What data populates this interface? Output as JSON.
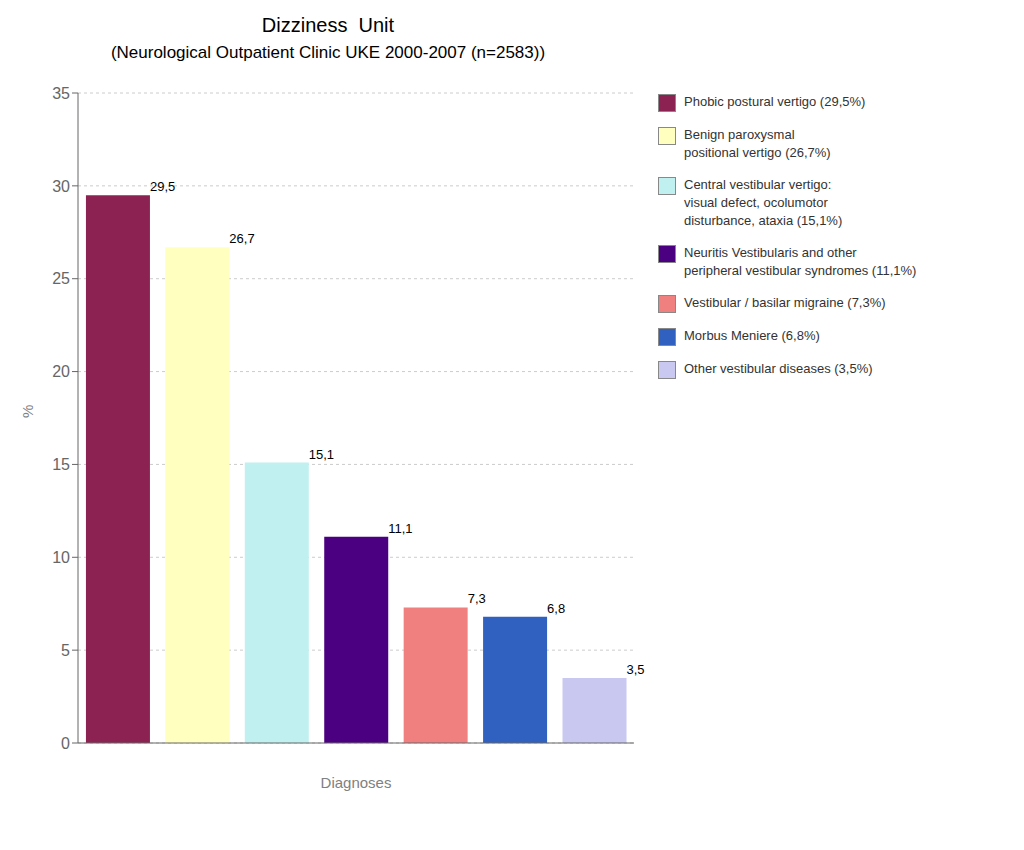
{
  "chart_data": {
    "type": "bar",
    "title": "Dizziness  Unit",
    "subtitle": "(Neurological Outpatient Clinic UKE 2000-2007 (n=2583))",
    "x_label": "Diagnoses",
    "y_label": "%",
    "categories": [
      null,
      null,
      null,
      null,
      null,
      null,
      null
    ],
    "series": [
      {
        "name": "Phobic postural vertigo (29,5%)",
        "color": "#8B2252",
        "values": [
          29.5,
          null,
          null,
          null,
          null,
          null,
          null
        ],
        "value_labels": [
          "29,5",
          null,
          null,
          null,
          null,
          null,
          null
        ]
      },
      {
        "name": "Benign paroxysmal\npositional vertigo (26,7%)",
        "color": "#FFFFC0",
        "values": [
          null,
          26.7,
          null,
          null,
          null,
          null,
          null
        ],
        "value_labels": [
          null,
          "26,7",
          null,
          null,
          null,
          null,
          null
        ]
      },
      {
        "name": "Central vestibular vertigo:\nvisual defect, ocolumotor\ndisturbance, ataxia (15,1%)",
        "color": "#C0F0F0",
        "values": [
          null,
          null,
          15.1,
          null,
          null,
          null,
          null
        ],
        "value_labels": [
          null,
          null,
          "15,1",
          null,
          null,
          null,
          null
        ]
      },
      {
        "name": "Neuritis Vestibularis and other\nperipheral vestibular syndromes (11,1%)",
        "color": "#4B0082",
        "values": [
          null,
          null,
          null,
          11.1,
          null,
          null,
          null
        ],
        "value_labels": [
          null,
          null,
          null,
          "11,1",
          null,
          null,
          null
        ]
      },
      {
        "name": "Vestibular / basilar migraine (7,3%)",
        "color": "#F08080",
        "values": [
          null,
          null,
          null,
          null,
          7.3,
          null,
          null
        ],
        "value_labels": [
          null,
          null,
          null,
          null,
          "7,3",
          null,
          null
        ]
      },
      {
        "name": "Morbus Meniere (6,8%)",
        "color": "#3060C0",
        "values": [
          null,
          null,
          null,
          null,
          null,
          6.8,
          null
        ],
        "value_labels": [
          null,
          null,
          null,
          null,
          null,
          "6,8",
          null
        ]
      },
      {
        "name": "Other vestibular diseases (3,5%)",
        "color": "#C8C8F0",
        "values": [
          null,
          null,
          null,
          null,
          null,
          null,
          3.5
        ],
        "value_labels": [
          null,
          null,
          null,
          null,
          null,
          null,
          "3,5"
        ]
      }
    ],
    "ylim": [
      0,
      35
    ],
    "yticks": [
      0,
      5,
      10,
      15,
      20,
      25,
      30,
      35
    ],
    "grid": true,
    "legend": "right",
    "data_labels": true,
    "tick_labels": "y"
  }
}
